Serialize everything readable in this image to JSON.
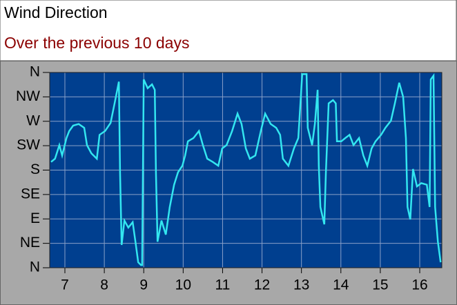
{
  "chart_data": {
    "type": "line",
    "title": "Wind Direction",
    "subtitle": "Over the previous 10 days",
    "x": [
      6.65,
      6.75,
      6.86,
      6.93,
      7.04,
      7.11,
      7.21,
      7.35,
      7.49,
      7.56,
      7.67,
      7.81,
      7.88,
      8.02,
      8.16,
      8.26,
      8.37,
      8.4,
      8.44,
      8.51,
      8.61,
      8.72,
      8.79,
      8.86,
      8.93,
      8.96,
      9.0,
      9.1,
      9.21,
      9.28,
      9.31,
      9.35,
      9.45,
      9.56,
      9.66,
      9.77,
      9.87,
      9.98,
      10.05,
      10.12,
      10.26,
      10.4,
      10.5,
      10.61,
      10.75,
      10.89,
      10.99,
      11.1,
      11.24,
      11.38,
      11.48,
      11.59,
      11.69,
      11.83,
      11.97,
      12.08,
      12.22,
      12.36,
      12.46,
      12.53,
      12.67,
      12.81,
      12.92,
      13.02,
      13.13,
      13.16,
      13.27,
      13.34,
      13.41,
      13.44,
      13.48,
      13.58,
      13.62,
      13.69,
      13.8,
      13.87,
      13.9,
      14.01,
      14.11,
      14.22,
      14.32,
      14.46,
      14.57,
      14.67,
      14.78,
      14.88,
      15.02,
      15.13,
      15.27,
      15.37,
      15.48,
      15.58,
      15.65,
      15.69,
      15.76,
      15.83,
      15.93,
      16.04,
      16.18,
      16.25,
      16.28,
      16.35,
      16.39,
      16.46,
      16.53
    ],
    "series": [
      {
        "color": "#33e6f0",
        "values": [
          195,
          201,
          226,
          207,
          239,
          252,
          262,
          265,
          258,
          226,
          211,
          201,
          245,
          252,
          267,
          303,
          343,
          176,
          42,
          87,
          74,
          84,
          48,
          10,
          5,
          5,
          347,
          331,
          338,
          328,
          176,
          48,
          87,
          61,
          112,
          153,
          176,
          188,
          207,
          233,
          239,
          252,
          226,
          201,
          195,
          188,
          220,
          226,
          252,
          284,
          265,
          220,
          201,
          207,
          252,
          284,
          265,
          258,
          245,
          201,
          188,
          220,
          239,
          357,
          357,
          258,
          226,
          265,
          328,
          188,
          112,
          80,
          176,
          303,
          309,
          303,
          233,
          233,
          239,
          245,
          226,
          239,
          207,
          188,
          220,
          233,
          245,
          258,
          271,
          303,
          341,
          315,
          239,
          112,
          89,
          182,
          150,
          156,
          153,
          112,
          347,
          354,
          112,
          48,
          10
        ]
      }
    ],
    "xlim": [
      6.615,
      16.56
    ],
    "xticks": [
      7,
      8,
      9,
      10,
      11,
      12,
      13,
      14,
      15,
      16
    ],
    "ylim": [
      0,
      360
    ],
    "yticks": [
      {
        "value": 0,
        "label": "N"
      },
      {
        "value": 45,
        "label": "NE"
      },
      {
        "value": 90,
        "label": "E"
      },
      {
        "value": 135,
        "label": "SE"
      },
      {
        "value": 180,
        "label": "S"
      },
      {
        "value": 225,
        "label": "SW"
      },
      {
        "value": 270,
        "label": "W"
      },
      {
        "value": 315,
        "label": "NW"
      },
      {
        "value": 360,
        "label": "N"
      }
    ],
    "grid": true,
    "background": "#003f8f"
  }
}
